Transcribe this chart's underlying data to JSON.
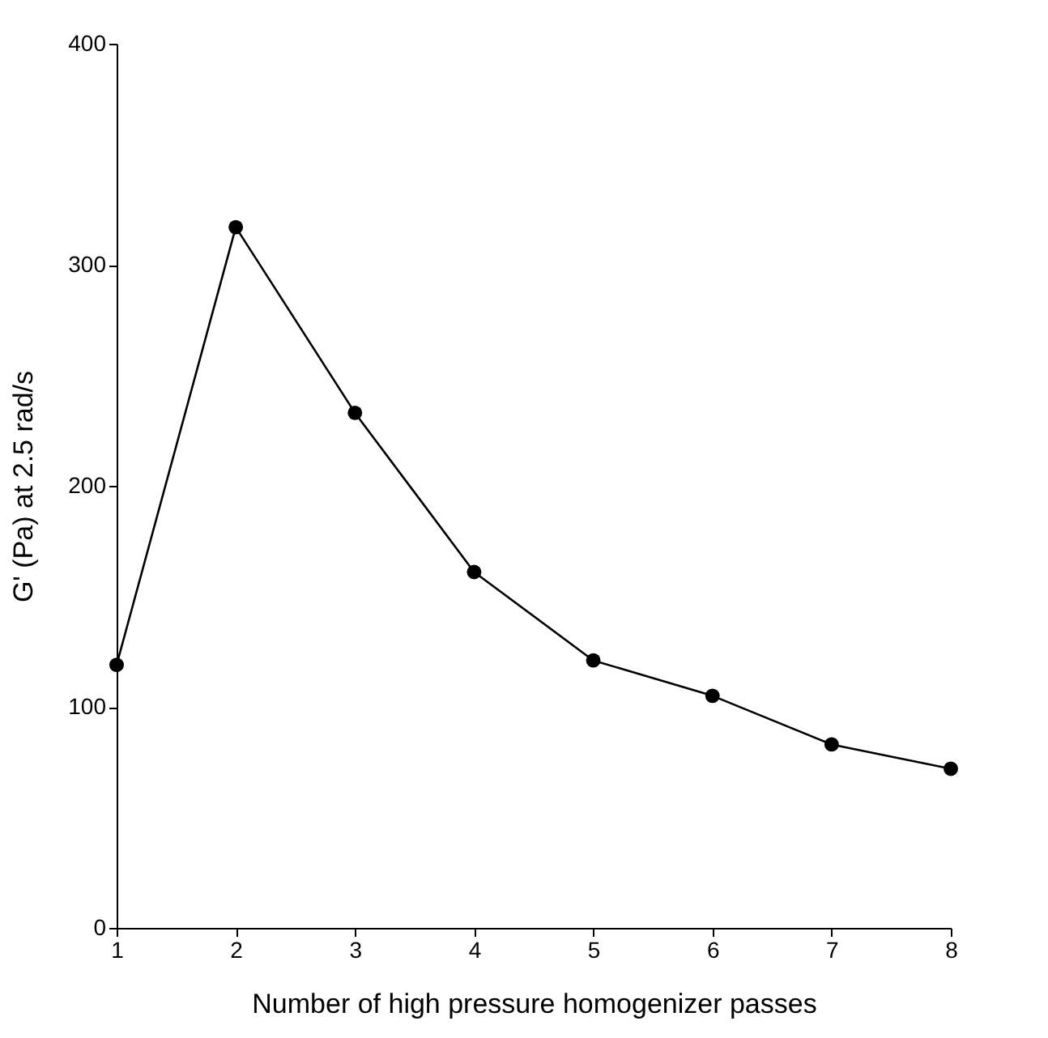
{
  "chart_data": {
    "type": "line",
    "xlabel": "Number of high pressure homogenizer passes",
    "ylabel": "G' (Pa) at 2.5 rad/s",
    "x": [
      1,
      2,
      3,
      4,
      5,
      6,
      7,
      8
    ],
    "series": [
      {
        "color": "#000000",
        "values": [
          119,
          317,
          233,
          161,
          121,
          105,
          83,
          72
        ]
      }
    ],
    "xlim": [
      1,
      8
    ],
    "xticks": [
      1,
      2,
      3,
      4,
      5,
      6,
      7,
      8
    ],
    "ylim": [
      0,
      400
    ],
    "yticks": [
      0,
      100,
      200,
      300,
      400
    ],
    "grid": false,
    "marker": "circle",
    "line_style": "solid"
  }
}
